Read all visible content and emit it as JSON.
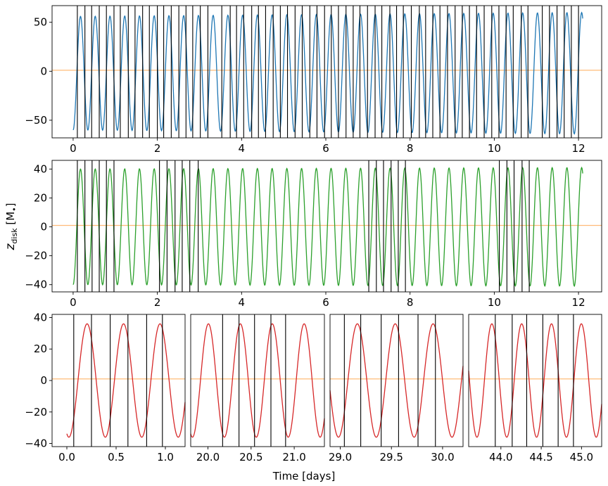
{
  "chart_data": [
    {
      "id": "top",
      "type": "line",
      "series": [
        {
          "name": "z_disk",
          "color": "#1f77b4",
          "baseline": -2,
          "amplitude_start": 58,
          "amplitude_end": 62,
          "period_days": 0.35,
          "phase_start_deg": 270,
          "x_start": 0.0,
          "x_end": 12.1
        },
        {
          "name": "zero",
          "color": "#ffbb78",
          "value": 1
        }
      ],
      "xlim": [
        -0.5,
        12.55
      ],
      "ylim": [
        -68,
        67
      ],
      "xticks": [
        0,
        2,
        4,
        6,
        8,
        10,
        12
      ],
      "xtick_labels": [
        "0",
        "2",
        "4",
        "6",
        "8",
        "10",
        "12"
      ],
      "yticks": [
        50,
        0,
        -50
      ],
      "ytick_labels": [
        "50",
        "0",
        "−50"
      ],
      "vlines": [
        0.1,
        0.28,
        0.44,
        0.62,
        0.79,
        0.97,
        1.12,
        1.31,
        1.47,
        1.65,
        1.81,
        2.0,
        2.15,
        2.33,
        2.51,
        2.68,
        2.84,
        3.02,
        3.2,
        3.53,
        3.73,
        3.88,
        4.05,
        4.24,
        4.4,
        4.57,
        4.75,
        4.92,
        5.09,
        5.27,
        5.44,
        5.62,
        5.79,
        5.97,
        6.13,
        6.3,
        6.48,
        6.65,
        6.81,
        6.99,
        7.17,
        7.33,
        7.52,
        7.68,
        7.84,
        8.03,
        8.22,
        8.37,
        8.54,
        8.71,
        8.89,
        9.07,
        9.24,
        9.41,
        9.58,
        9.76,
        9.94,
        10.11,
        10.28,
        10.45,
        10.64,
        10.8,
        11.14,
        11.31,
        11.49,
        11.66,
        11.83,
        12.0
      ]
    },
    {
      "id": "middle",
      "type": "line",
      "series": [
        {
          "name": "z_disk",
          "color": "#2ca02c",
          "baseline": 0,
          "amplitude_start": 40,
          "amplitude_end": 41,
          "period_days": 0.35,
          "phase_start_deg": 270,
          "x_start": 0.0,
          "x_end": 12.1
        },
        {
          "name": "zero",
          "color": "#ffbb78",
          "value": 1
        }
      ],
      "xlim": [
        -0.5,
        12.55
      ],
      "ylim": [
        -45,
        46
      ],
      "xticks": [
        0,
        2,
        4,
        6,
        8,
        10,
        12
      ],
      "xtick_labels": [
        "0",
        "2",
        "4",
        "6",
        "8",
        "10",
        "12"
      ],
      "yticks": [
        40,
        20,
        0,
        -20,
        -40
      ],
      "ytick_labels": [
        "40",
        "20",
        "0",
        "−20",
        "−40"
      ],
      "ylabel": "z",
      "ylabel_sub": "disk",
      "ylabel_unit": "[M",
      "ylabel_unit_sub": "•",
      "ylabel_unit_close": "]",
      "vlines": [
        0.1,
        0.28,
        0.45,
        0.62,
        0.79,
        0.97,
        2.05,
        2.23,
        2.42,
        2.59,
        2.77,
        2.97,
        7.02,
        7.2,
        7.37,
        7.55,
        7.72,
        7.89,
        10.12,
        10.3,
        10.47,
        10.66,
        10.83
      ]
    }
  ],
  "bottom_panels": {
    "xlabel": "Time [days]",
    "ylim": [
      -42,
      42
    ],
    "yticks": [
      40,
      20,
      0,
      -20,
      -40
    ],
    "ytick_labels": [
      "40",
      "20",
      "0",
      "−20",
      "−40"
    ],
    "zero_line": {
      "value": 1,
      "color": "#ffbb78"
    },
    "color": "#d62728",
    "amplitude": 36,
    "panels": [
      {
        "xlim": [
          -0.15,
          1.2
        ],
        "x_start": 0.0,
        "x_end": 1.2,
        "phase_start_deg": 250,
        "period_days": 0.37,
        "xticks": [
          0.0,
          0.5,
          1.0
        ],
        "xtick_labels": [
          "0.0",
          "0.5",
          "1.0"
        ],
        "vlines": [
          0.07,
          0.25,
          0.44,
          0.62,
          0.81,
          0.97
        ]
      },
      {
        "xlim": [
          19.8,
          21.35
        ],
        "x_start": 19.8,
        "x_end": 21.35,
        "phase_start_deg": 250,
        "period_days": 0.37,
        "xticks": [
          20.0,
          20.5,
          21.0
        ],
        "xtick_labels": [
          "20.0",
          "20.5",
          "21.0"
        ],
        "vlines": [
          20.17,
          20.36,
          20.54,
          20.73,
          20.9
        ]
      },
      {
        "xlim": [
          28.9,
          30.2
        ],
        "x_start": 28.9,
        "x_end": 30.2,
        "phase_start_deg": 190,
        "period_days": 0.37,
        "xticks": [
          29.0,
          29.5,
          30.0
        ],
        "xtick_labels": [
          "29.0",
          "29.5",
          "30.0"
        ],
        "vlines": [
          29.04,
          29.2,
          29.4,
          29.57,
          29.76,
          29.93
        ]
      },
      {
        "xlim": [
          43.6,
          45.25
        ],
        "x_start": 43.6,
        "x_end": 45.25,
        "phase_start_deg": 170,
        "period_days": 0.37,
        "xticks": [
          44.0,
          44.5,
          45.0
        ],
        "xtick_labels": [
          "44.0",
          "44.5",
          "45.0"
        ],
        "vlines": [
          43.93,
          44.14,
          44.32,
          44.52,
          44.71,
          44.9
        ]
      }
    ]
  }
}
